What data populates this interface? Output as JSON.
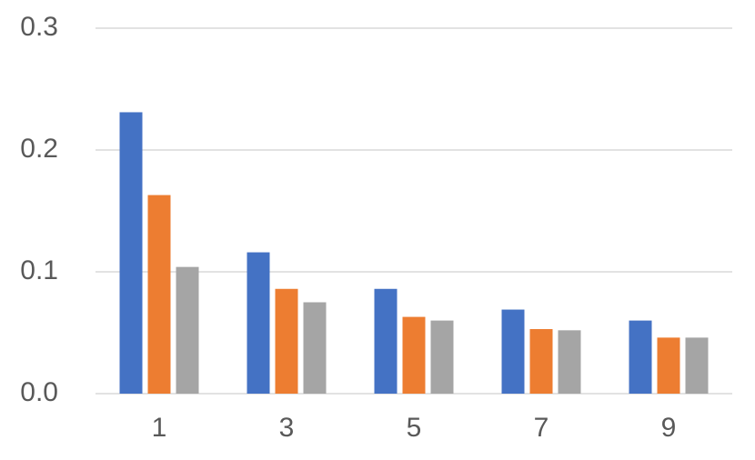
{
  "chart_data": {
    "type": "bar",
    "categories": [
      "1",
      "3",
      "5",
      "7",
      "9"
    ],
    "series": [
      {
        "color": "#4472c4",
        "values": [
          0.231,
          0.116,
          0.086,
          0.069,
          0.06
        ]
      },
      {
        "color": "#ed7d31",
        "values": [
          0.163,
          0.086,
          0.063,
          0.053,
          0.046
        ]
      },
      {
        "color": "#a5a5a5",
        "values": [
          0.104,
          0.075,
          0.06,
          0.052,
          0.046
        ]
      }
    ],
    "ylim": [
      0,
      0.3
    ],
    "yticks": [
      {
        "value": 0,
        "label": "0.0"
      },
      0.1,
      0.2,
      0.3
    ],
    "grid": true
  }
}
